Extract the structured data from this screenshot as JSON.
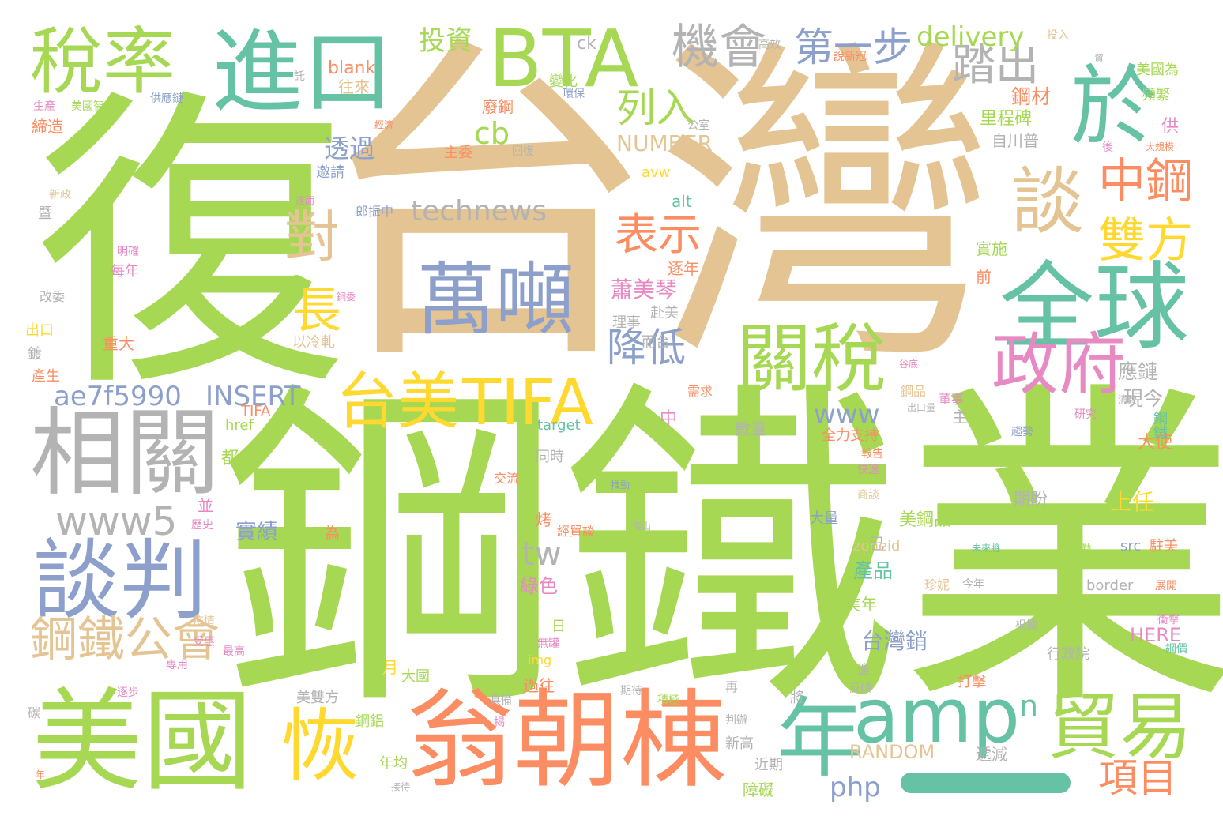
{
  "colors": {
    "background": "#ffffff",
    "green": "#a6d854",
    "tan": "#e5c494",
    "teal": "#66c2a5",
    "orange": "#fc8d62",
    "blue": "#8da0cb",
    "gray": "#b3b3b3",
    "yellow": "#ffd92f",
    "pink": "#e78ac3"
  },
  "words": [
    {
      "text": "台灣",
      "color": "tan"
    },
    {
      "text": "鋼鐵業",
      "color": "green"
    },
    {
      "text": "復",
      "color": "green"
    },
    {
      "text": "於",
      "color": "teal"
    },
    {
      "text": "翁朝棟",
      "color": "orange"
    },
    {
      "text": "美國",
      "color": "green"
    },
    {
      "text": "萬噸",
      "color": "blue"
    },
    {
      "text": "全球",
      "color": "teal"
    },
    {
      "text": "相關",
      "color": "gray"
    },
    {
      "text": "進口",
      "color": "teal"
    },
    {
      "text": "BTA",
      "color": "green"
    },
    {
      "text": "稅率",
      "color": "green"
    },
    {
      "text": "談判",
      "color": "blue"
    },
    {
      "text": "關稅",
      "color": "green"
    },
    {
      "text": "amp",
      "color": "teal"
    },
    {
      "text": "貿易",
      "color": "green"
    },
    {
      "text": "年",
      "color": "teal"
    },
    {
      "text": "TIFA",
      "color": "yellow"
    },
    {
      "text": "台美",
      "color": "yellow"
    },
    {
      "text": "政府",
      "color": "pink"
    },
    {
      "text": "恢",
      "color": "yellow"
    },
    {
      "text": "談",
      "color": "tan"
    },
    {
      "text": "中鋼",
      "color": "orange"
    },
    {
      "text": "雙方",
      "color": "yellow"
    },
    {
      "text": "鋼鐵公會",
      "color": "tan"
    },
    {
      "text": "www5",
      "color": "gray"
    },
    {
      "text": "機會",
      "color": "gray"
    },
    {
      "text": "第一步",
      "color": "blue"
    },
    {
      "text": "踏出",
      "color": "gray"
    },
    {
      "text": "列入",
      "color": "green"
    },
    {
      "text": "表示",
      "color": "orange"
    },
    {
      "text": "technews",
      "color": "gray"
    },
    {
      "text": "對",
      "color": "tan"
    },
    {
      "text": "長",
      "color": "yellow"
    },
    {
      "text": "降低",
      "color": "blue"
    },
    {
      "text": "delivery",
      "color": "green"
    },
    {
      "text": "投資",
      "color": "green"
    },
    {
      "text": "cb",
      "color": "green"
    },
    {
      "text": "NUMBER",
      "color": "tan"
    },
    {
      "text": "透過",
      "color": "blue"
    },
    {
      "text": "ae7f5990",
      "color": "blue"
    },
    {
      "text": "INSERT",
      "color": "blue"
    },
    {
      "text": "www",
      "color": "blue"
    },
    {
      "text": "項目",
      "color": "orange"
    },
    {
      "text": "tw",
      "color": "gray"
    },
    {
      "text": "a",
      "color": "green"
    },
    {
      "text": "n",
      "color": "teal"
    },
    {
      "text": "php",
      "color": "blue"
    },
    {
      "text": "RANDOM",
      "color": "tan"
    },
    {
      "text": "蕭美琴",
      "color": "pink"
    },
    {
      "text": "鋼材",
      "color": "orange"
    },
    {
      "text": "里程碑",
      "color": "green"
    },
    {
      "text": "應鏈",
      "color": "gray"
    },
    {
      "text": "現今",
      "color": "gray"
    },
    {
      "text": "大使",
      "color": "orange"
    },
    {
      "text": "上任",
      "color": "yellow"
    },
    {
      "text": "美鋼品",
      "color": "green"
    },
    {
      "text": "台灣銷",
      "color": "blue"
    },
    {
      "text": "實績",
      "color": "blue"
    },
    {
      "text": "綠色",
      "color": "pink"
    },
    {
      "text": "期盼",
      "color": "gray"
    },
    {
      "text": "產品",
      "color": "teal"
    },
    {
      "text": "美年",
      "color": "green"
    },
    {
      "text": "HERE",
      "color": "pink"
    },
    {
      "text": "美國為",
      "color": "green"
    },
    {
      "text": "頻繁",
      "color": "green"
    },
    {
      "text": "供",
      "color": "pink"
    },
    {
      "text": "前",
      "color": "orange"
    },
    {
      "text": "實施",
      "color": "green"
    },
    {
      "text": "自川普",
      "color": "gray"
    },
    {
      "text": "廢鋼",
      "color": "orange"
    },
    {
      "text": "主委",
      "color": "orange"
    },
    {
      "text": "往來",
      "color": "tan"
    },
    {
      "text": "blank",
      "color": "orange"
    },
    {
      "text": "變化",
      "color": "green"
    },
    {
      "text": "ck",
      "color": "gray"
    },
    {
      "text": "供應鏈",
      "color": "blue"
    },
    {
      "text": "美國智庫",
      "color": "green"
    },
    {
      "text": "締造",
      "color": "orange"
    },
    {
      "text": "邀請",
      "color": "blue"
    },
    {
      "text": "alt",
      "color": "teal"
    },
    {
      "text": "avw",
      "color": "yellow"
    },
    {
      "text": "郎振中",
      "color": "blue"
    },
    {
      "text": "逐年",
      "color": "orange"
    },
    {
      "text": "每年",
      "color": "pink"
    },
    {
      "text": "理事",
      "color": "gray"
    },
    {
      "text": "而台",
      "color": "gray"
    },
    {
      "text": "赴美",
      "color": "gray"
    },
    {
      "text": "以冷軋",
      "color": "tan"
    },
    {
      "text": "重大",
      "color": "orange"
    },
    {
      "text": "出口",
      "color": "yellow"
    },
    {
      "text": "鍍",
      "color": "gray"
    },
    {
      "text": "產生",
      "color": "orange"
    },
    {
      "text": "都",
      "color": "green"
    },
    {
      "text": "中",
      "color": "pink"
    },
    {
      "text": "數量",
      "color": "gray"
    },
    {
      "text": "全力支持",
      "color": "orange"
    },
    {
      "text": "同時",
      "color": "gray"
    },
    {
      "text": "交流",
      "color": "orange"
    },
    {
      "text": "target",
      "color": "teal"
    },
    {
      "text": "href",
      "color": "green"
    },
    {
      "text": "TIFA",
      "color": "orange"
    },
    {
      "text": "並",
      "color": "pink"
    },
    {
      "text": "為",
      "color": "orange"
    },
    {
      "text": "已",
      "color": "gray"
    },
    {
      "text": "大量",
      "color": "blue"
    },
    {
      "text": "zoneid",
      "color": "tan"
    },
    {
      "text": "珍妮",
      "color": "tan"
    },
    {
      "text": "今年",
      "color": "gray"
    },
    {
      "text": "border",
      "color": "gray"
    },
    {
      "text": "src",
      "color": "blue"
    },
    {
      "text": "駐美",
      "color": "orange"
    },
    {
      "text": "打擊",
      "color": "orange"
    },
    {
      "text": "行政院",
      "color": "gray"
    },
    {
      "text": "大國",
      "color": "green"
    },
    {
      "text": "月",
      "color": "yellow"
    },
    {
      "text": "美雙方",
      "color": "gray"
    },
    {
      "text": "鋼鋁",
      "color": "green"
    },
    {
      "text": "年均",
      "color": "green"
    },
    {
      "text": "障礙",
      "color": "green"
    },
    {
      "text": "近期",
      "color": "gray"
    },
    {
      "text": "遞減",
      "color": "gray"
    },
    {
      "text": "過往",
      "color": "orange"
    },
    {
      "text": "img",
      "color": "yellow"
    },
    {
      "text": "將",
      "color": "gray"
    },
    {
      "text": "新高",
      "color": "gray"
    },
    {
      "text": "判辦",
      "color": "gray"
    },
    {
      "text": "鋼鐵",
      "color": "teal"
    },
    {
      "text": "鋼品",
      "color": "tan"
    },
    {
      "text": "董事",
      "color": "pink"
    },
    {
      "text": "需求",
      "color": "orange"
    },
    {
      "text": "主",
      "color": "gray"
    },
    {
      "text": "烤",
      "color": "orange"
    },
    {
      "text": "經貿談",
      "color": "orange"
    },
    {
      "text": "日",
      "color": "green"
    },
    {
      "text": "歷史",
      "color": "pink"
    },
    {
      "text": "環保",
      "color": "blue"
    },
    {
      "text": "公室",
      "color": "gray"
    },
    {
      "text": "回復",
      "color": "gray"
    },
    {
      "text": "後",
      "color": "pink"
    },
    {
      "text": "說新冠",
      "color": "orange"
    },
    {
      "text": "高效",
      "color": "gray"
    },
    {
      "text": "投入",
      "color": "tan"
    },
    {
      "text": "貿",
      "color": "gray"
    },
    {
      "text": "生產",
      "color": "pink"
    },
    {
      "text": "託",
      "color": "gray"
    },
    {
      "text": "新政",
      "color": "tan"
    },
    {
      "text": "暨",
      "color": "gray"
    },
    {
      "text": "明確",
      "color": "pink"
    },
    {
      "text": "改委",
      "color": "gray"
    },
    {
      "text": "碳",
      "color": "gray"
    },
    {
      "text": "快速",
      "color": "pink"
    },
    {
      "text": "報告",
      "color": "orange"
    },
    {
      "text": "趨勢",
      "color": "blue"
    },
    {
      "text": "研究",
      "color": "pink"
    },
    {
      "text": "衝擊",
      "color": "pink"
    },
    {
      "text": "鋼價",
      "color": "teal"
    },
    {
      "text": "展開",
      "color": "orange"
    },
    {
      "text": "根據",
      "color": "gray"
    },
    {
      "text": "未來將",
      "color": "teal"
    },
    {
      "text": "強勁勤",
      "color": "green"
    },
    {
      "text": "商談",
      "color": "tan"
    },
    {
      "text": "反傾",
      "color": "gray"
    },
    {
      "text": "期待",
      "color": "gray"
    },
    {
      "text": "積極",
      "color": "green"
    },
    {
      "text": "具備",
      "color": "gray"
    },
    {
      "text": "無罐",
      "color": "pink"
    },
    {
      "text": "疫情",
      "color": "tan"
    },
    {
      "text": "受惠",
      "color": "pink"
    },
    {
      "text": "專用",
      "color": "pink"
    },
    {
      "text": "最高",
      "color": "pink"
    },
    {
      "text": "逐步",
      "color": "pink"
    },
    {
      "text": "年",
      "color": "orange"
    },
    {
      "text": "揭",
      "color": "pink"
    },
    {
      "text": "大規模",
      "color": "orange"
    },
    {
      "text": "消費",
      "color": "gray"
    },
    {
      "text": "再",
      "color": "gray"
    },
    {
      "text": "邊",
      "color": "gray"
    },
    {
      "text": "接待",
      "color": "gray"
    },
    {
      "text": "推動",
      "color": "blue"
    },
    {
      "text": "復出",
      "color": "gray"
    },
    {
      "text": "經濟",
      "color": "orange"
    },
    {
      "text": "達而",
      "color": "pink"
    },
    {
      "text": "鋼委",
      "color": "pink"
    },
    {
      "text": "谷底",
      "color": "pink"
    },
    {
      "text": "出口量",
      "color": "gray"
    }
  ]
}
